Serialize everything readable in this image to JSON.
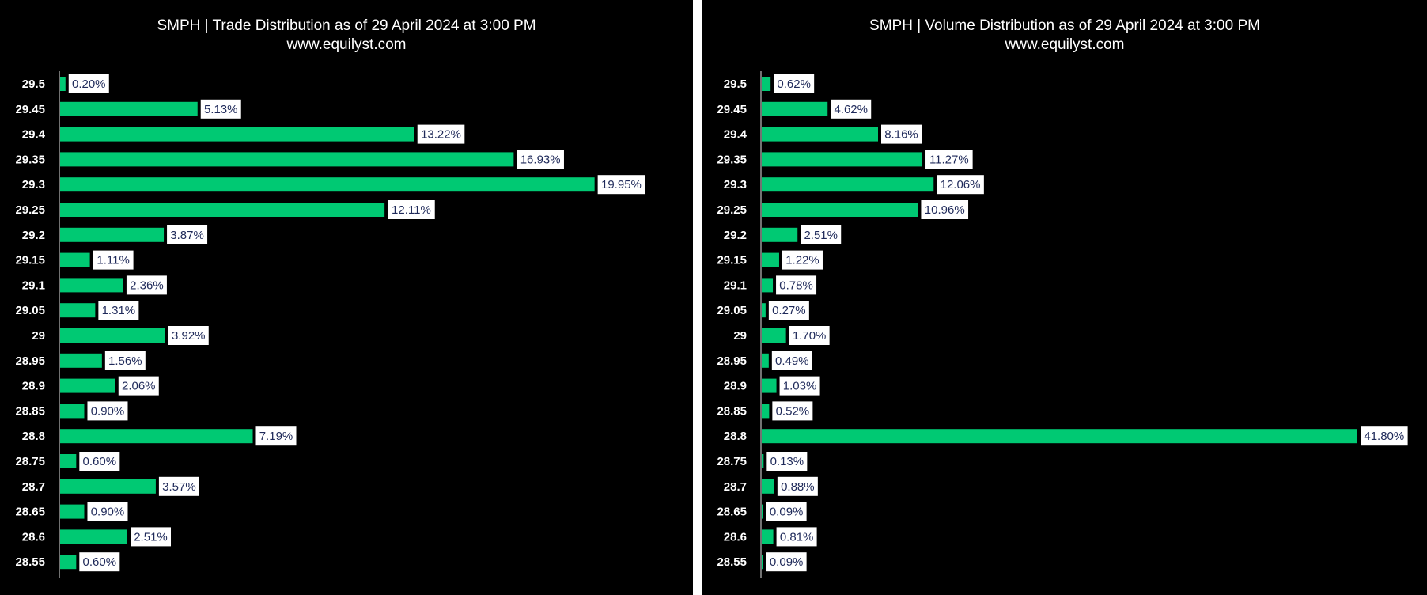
{
  "chart_data": [
    {
      "type": "bar",
      "orientation": "horizontal",
      "title": "SMPH | Trade Distribution as of 29 April 2024 at 3:00 PM",
      "subtitle": "www.equilyst.com",
      "categories": [
        "29.5",
        "29.45",
        "29.4",
        "29.35",
        "29.3",
        "29.25",
        "29.2",
        "29.15",
        "29.1",
        "29.05",
        "29",
        "28.95",
        "28.9",
        "28.85",
        "28.8",
        "28.75",
        "28.7",
        "28.65",
        "28.6",
        "28.55"
      ],
      "values": [
        0.2,
        5.13,
        13.22,
        16.93,
        19.95,
        12.11,
        3.87,
        1.11,
        2.36,
        1.31,
        3.92,
        1.56,
        2.06,
        0.9,
        7.19,
        0.6,
        3.57,
        0.9,
        2.51,
        0.6
      ],
      "value_labels": [
        "0.20%",
        "5.13%",
        "13.22%",
        "16.93%",
        "19.95%",
        "12.11%",
        "3.87%",
        "1.11%",
        "2.36%",
        "1.31%",
        "3.92%",
        "1.56%",
        "2.06%",
        "0.90%",
        "7.19%",
        "0.60%",
        "3.57%",
        "0.90%",
        "2.51%",
        "0.60%"
      ],
      "xlim": [
        0,
        22.5
      ],
      "bar_color": "#00c973",
      "background": "#000000",
      "grid": false
    },
    {
      "type": "bar",
      "orientation": "horizontal",
      "title": "SMPH | Volume Distribution as of 29 April 2024 at 3:00 PM",
      "subtitle": "www.equilyst.com",
      "categories": [
        "29.5",
        "29.45",
        "29.4",
        "29.35",
        "29.3",
        "29.25",
        "29.2",
        "29.15",
        "29.1",
        "29.05",
        "29",
        "28.95",
        "28.9",
        "28.85",
        "28.8",
        "28.75",
        "28.7",
        "28.65",
        "28.6",
        "28.55"
      ],
      "values": [
        0.62,
        4.62,
        8.16,
        11.27,
        12.06,
        10.96,
        2.51,
        1.22,
        0.78,
        0.27,
        1.7,
        0.49,
        1.03,
        0.52,
        41.8,
        0.13,
        0.88,
        0.09,
        0.81,
        0.09
      ],
      "value_labels": [
        "0.62%",
        "4.62%",
        "8.16%",
        "11.27%",
        "12.06%",
        "10.96%",
        "2.51%",
        "1.22%",
        "0.78%",
        "0.27%",
        "1.70%",
        "0.49%",
        "1.03%",
        "0.52%",
        "41.80%",
        "0.13%",
        "0.88%",
        "0.09%",
        "0.81%",
        "0.09%"
      ],
      "xlim": [
        0,
        41.8
      ],
      "bar_color": "#00c973",
      "background": "#000000",
      "grid": false
    }
  ]
}
